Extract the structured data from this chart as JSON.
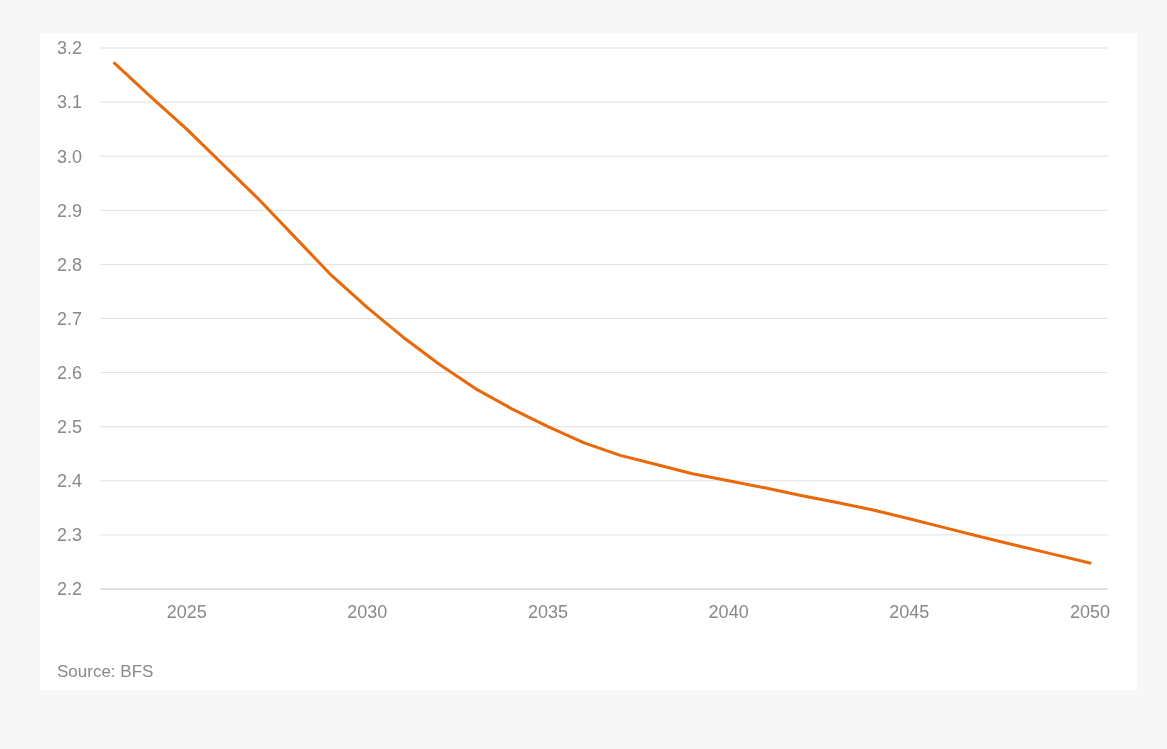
{
  "chart_data": {
    "type": "line",
    "x": [
      2023,
      2024,
      2025,
      2026,
      2027,
      2028,
      2029,
      2030,
      2031,
      2032,
      2033,
      2034,
      2035,
      2036,
      2037,
      2038,
      2039,
      2040,
      2041,
      2042,
      2043,
      2044,
      2045,
      2046,
      2047,
      2048,
      2049,
      2050
    ],
    "series": [
      {
        "color": "#e8680a",
        "values": [
          3.172,
          3.11,
          3.05,
          2.985,
          2.92,
          2.85,
          2.78,
          2.72,
          2.665,
          2.615,
          2.57,
          2.533,
          2.5,
          2.47,
          2.447,
          2.43,
          2.413,
          2.4,
          2.387,
          2.373,
          2.36,
          2.346,
          2.33,
          2.313,
          2.296,
          2.28,
          2.264,
          2.248
        ]
      }
    ],
    "xlim": [
      2022.6,
      2050.5
    ],
    "xticks": [
      2025,
      2030,
      2035,
      2040,
      2045,
      2050
    ],
    "ylim": [
      2.2,
      3.2
    ],
    "yticks": [
      2.2,
      2.3,
      2.4,
      2.5,
      2.6,
      2.7,
      2.8,
      2.9,
      {
        "value": 3,
        "label": "3.0"
      },
      3.1,
      3.2
    ],
    "grid": "y",
    "marker": "none",
    "line_style": "solid",
    "annotations": [
      "Source: BFS"
    ]
  }
}
